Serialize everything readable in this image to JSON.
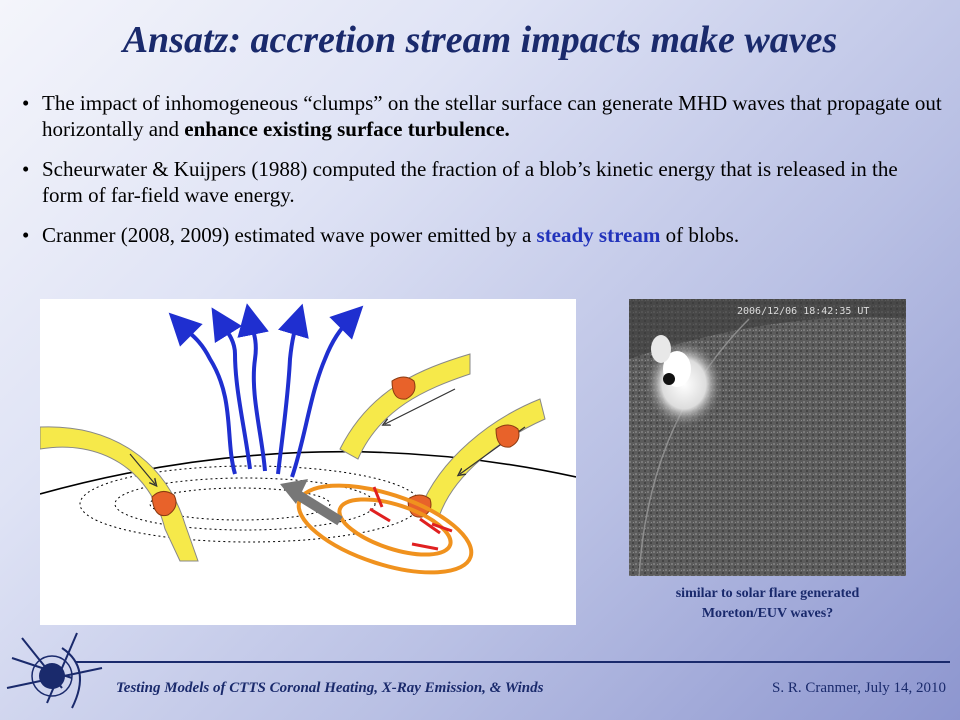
{
  "title": "Ansatz:  accretion stream impacts make waves",
  "bullets": [
    {
      "before": "The impact of inhomogeneous “clumps” on the stellar surface can generate MHD waves that propagate out horizontally and ",
      "emphasis": "enhance existing surface turbulence.",
      "after": ""
    },
    {
      "before": "Scheurwater & Kuijpers (1988) computed the fraction of a blob’s kinetic energy that is released in the form of far-field wave energy.",
      "emphasis": "",
      "after": ""
    },
    {
      "before": "Cranmer (2008, 2009) estimated wave power emitted by a ",
      "emphasis": "steady stream",
      "after": " of blobs."
    }
  ],
  "bullet_glyph": "•",
  "solar_image": {
    "timestamp": "2006/12/06 18:42:35 UT"
  },
  "caption": {
    "line1": "similar to solar flare generated",
    "line2": "Moreton/EUV waves?"
  },
  "footer": {
    "left": "Testing Models of CTTS Coronal Heating, X-Ray Emission, & Winds",
    "right": "S. R. Cranmer, July 14, 2010"
  },
  "colors": {
    "title": "#1a2a6c",
    "emphasis_blue": "#2233bb",
    "stream_yellow": "#f6e94a",
    "blob_orange": "#e8622a",
    "wave_orange": "#f0921e",
    "field_blue": "#1f2fd0",
    "tick_red": "#e02020"
  },
  "icons": [
    "star-logo-icon",
    "arrow-icon"
  ]
}
